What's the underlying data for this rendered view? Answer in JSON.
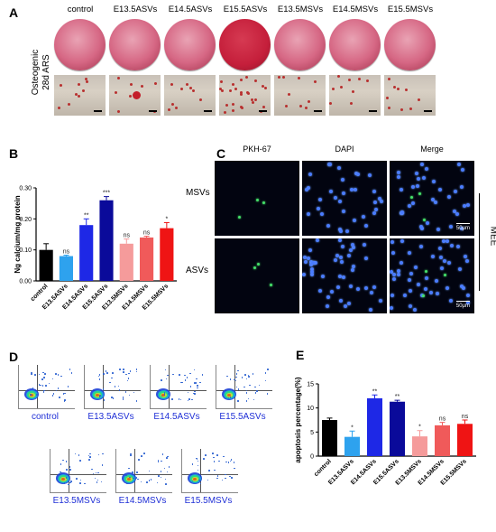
{
  "panels": {
    "A": "A",
    "B": "B",
    "C": "C",
    "D": "D",
    "E": "E"
  },
  "panelA": {
    "row_label_line1": "Osteogenic",
    "row_label_line2": "28d  ARS",
    "columns": [
      "control",
      "E13.5ASVs",
      "E14.5ASVs",
      "E15.5ASVs",
      "E13.5MSVs",
      "E14.5MSVs",
      "E15.5MSVs"
    ]
  },
  "panelC": {
    "columns": [
      "PKH-67",
      "DAPI",
      "Merge"
    ],
    "rows": [
      "MSVs",
      "ASVs"
    ],
    "side_label": "MEE",
    "scale_bar": "50μm"
  },
  "panelD": {
    "row1": [
      "control",
      "E13.5ASVs",
      "E14.5ASVs",
      "E15.5ASVs"
    ],
    "row2": [
      "E13.5MSVs",
      "E14.5MSVs",
      "E15.5MSVs"
    ]
  },
  "chart_data": [
    {
      "panel": "B",
      "type": "bar",
      "ylabel": "Ng calcium/mg protein",
      "ylim": [
        0,
        0.3
      ],
      "yticks": [
        "0.00",
        "0.10",
        "0.20",
        "0.30"
      ],
      "categories": [
        "control",
        "E13.5ASVs",
        "E14.5ASVs",
        "E15.5ASVs",
        "E13.5MSVs",
        "E14.5MSVs",
        "E15.5MSVs"
      ],
      "values": [
        0.1,
        0.08,
        0.18,
        0.26,
        0.12,
        0.14,
        0.17
      ],
      "errors": [
        0.02,
        0.003,
        0.02,
        0.012,
        0.015,
        0.004,
        0.018
      ],
      "significance": [
        "",
        "ns",
        "**",
        "***",
        "ns",
        "ns",
        "*"
      ],
      "colors": [
        "#000000",
        "#2ea2ee",
        "#1e28e6",
        "#0a0a9a",
        "#f59b9b",
        "#f05a5a",
        "#ef1414"
      ]
    },
    {
      "panel": "E",
      "type": "bar",
      "ylabel": "apoptosis percentage(%)",
      "ylim": [
        0,
        15
      ],
      "yticks": [
        "0",
        "5",
        "10",
        "15"
      ],
      "categories": [
        "control",
        "E13.5ASVs",
        "E14.5ASVs",
        "E15.5ASVs",
        "E13.5MSVs",
        "E14.5MSVs",
        "E15.5MSVs"
      ],
      "values": [
        7.5,
        4.0,
        12.0,
        11.3,
        4.1,
        6.4,
        6.7
      ],
      "errors": [
        0.4,
        1.2,
        0.7,
        0.3,
        1.2,
        0.6,
        0.8
      ],
      "significance": [
        "",
        "*",
        "**",
        "**",
        "*",
        "ns",
        "ns"
      ],
      "colors": [
        "#000000",
        "#2ea2ee",
        "#1e28e6",
        "#0a0a9a",
        "#f59b9b",
        "#f05a5a",
        "#ef1414"
      ]
    }
  ]
}
